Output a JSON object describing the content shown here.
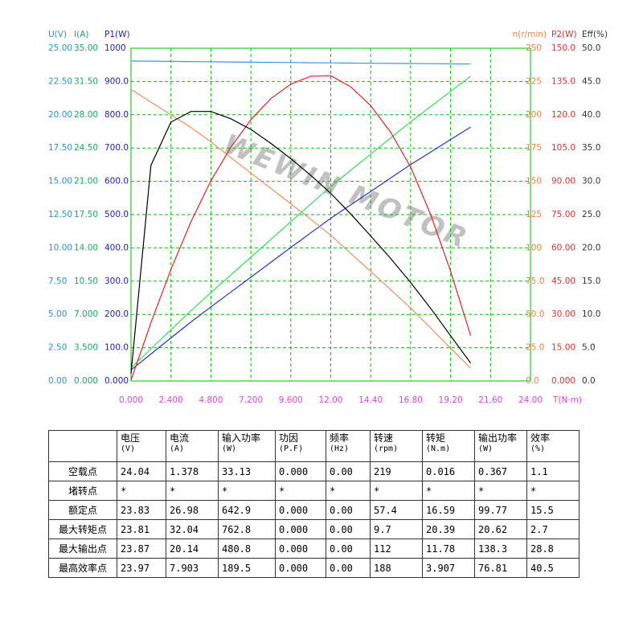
{
  "chart_data": {
    "type": "line",
    "watermark": "WEWIN MOTOR",
    "xlabel": "T(N·m)",
    "xlim": [
      0,
      24
    ],
    "xticks": [
      {
        "value": 0,
        "label": "0.000"
      },
      {
        "value": 2.4,
        "label": "2.400"
      },
      {
        "value": 4.8,
        "label": "4.800"
      },
      {
        "value": 7.2,
        "label": "7.200"
      },
      {
        "value": 9.6,
        "label": "9.600"
      },
      {
        "value": 12,
        "label": "12.00"
      },
      {
        "value": 14.4,
        "label": "14.40"
      },
      {
        "value": 16.8,
        "label": "16.80"
      },
      {
        "value": 19.2,
        "label": "19.20"
      },
      {
        "value": 21.6,
        "label": "21.60"
      },
      {
        "value": 24,
        "label": "24.00"
      }
    ],
    "grid": true,
    "x": [
      0,
      1.2,
      2.4,
      3.6,
      4.8,
      6,
      7.2,
      8.4,
      9.6,
      10.8,
      12,
      13.2,
      14.4,
      15.6,
      16.8,
      18,
      19.2,
      20.4
    ],
    "series": [
      {
        "name": "U(V)",
        "color": "#3a9ad9",
        "label_color": "#2d8fd5",
        "side": "left",
        "ylim": [
          0,
          25
        ],
        "yticks": [
          {
            "value": 0,
            "label": "0.00"
          },
          {
            "value": 2.5,
            "label": "2.50"
          },
          {
            "value": 5,
            "label": "5.00"
          },
          {
            "value": 7.5,
            "label": "7.50"
          },
          {
            "value": 10,
            "label": "10.00"
          },
          {
            "value": 12.5,
            "label": "12.50"
          },
          {
            "value": 15,
            "label": "15.00"
          },
          {
            "value": 17.5,
            "label": "17.50"
          },
          {
            "value": 20,
            "label": "20.00"
          },
          {
            "value": 22.5,
            "label": "22.50"
          },
          {
            "value": 25,
            "label": "25.00"
          }
        ],
        "values": [
          24.04,
          24.03,
          24.01,
          24.0,
          23.98,
          23.97,
          23.95,
          23.94,
          23.93,
          23.91,
          23.9,
          23.88,
          23.87,
          23.86,
          23.85,
          23.84,
          23.82,
          23.81
        ]
      },
      {
        "name": "I(A)",
        "color": "#33dd55",
        "label_color": "#1aa860",
        "side": "left",
        "ylim": [
          0,
          35
        ],
        "yticks": [
          {
            "value": 0,
            "label": "0.000"
          },
          {
            "value": 3.5,
            "label": "3.500"
          },
          {
            "value": 7,
            "label": "7.000"
          },
          {
            "value": 10.5,
            "label": "10.50"
          },
          {
            "value": 14,
            "label": "14.00"
          },
          {
            "value": 17.5,
            "label": "17.50"
          },
          {
            "value": 21,
            "label": "21.00"
          },
          {
            "value": 24.5,
            "label": "24.50"
          },
          {
            "value": 28,
            "label": "28.00"
          },
          {
            "value": 31.5,
            "label": "31.50"
          },
          {
            "value": 35,
            "label": "35.00"
          }
        ],
        "values": [
          1.38,
          3.38,
          5.39,
          7.39,
          9.29,
          11.16,
          13.02,
          14.89,
          16.76,
          18.62,
          20.45,
          22.16,
          23.86,
          25.57,
          27.26,
          28.86,
          30.46,
          32.05
        ]
      },
      {
        "name": "P1(W)",
        "color": "#2233cc",
        "label_color": "#2020c0",
        "side": "left",
        "ylim": [
          0,
          1000
        ],
        "yticks": [
          {
            "value": 0,
            "label": "0.000"
          },
          {
            "value": 100,
            "label": "100.0"
          },
          {
            "value": 200,
            "label": "200.0"
          },
          {
            "value": 300,
            "label": "300.0"
          },
          {
            "value": 400,
            "label": "400.0"
          },
          {
            "value": 500,
            "label": "500.0"
          },
          {
            "value": 600,
            "label": "600.0"
          },
          {
            "value": 700,
            "label": "700.0"
          },
          {
            "value": 800,
            "label": "800.0"
          },
          {
            "value": 900,
            "label": "900.0"
          },
          1000
        ],
        "values": [
          33.2,
          81.2,
          129.4,
          177.4,
          222.8,
          267.5,
          311.8,
          356.5,
          401.1,
          445.2,
          488.8,
          529.2,
          569.5,
          610.1,
          650.2,
          688.0,
          725.6,
          763.1
        ]
      },
      {
        "name": "n(r/min)",
        "color": "#f0905a",
        "label_color": "#f08040",
        "side": "right",
        "ylim": [
          0,
          250
        ],
        "yticks": [
          {
            "value": 0,
            "label": "0.0"
          },
          {
            "value": 25,
            "label": "25.0"
          },
          {
            "value": 50,
            "label": "50.0"
          },
          {
            "value": 75,
            "label": "75.0"
          },
          100,
          125,
          150,
          175,
          200,
          225,
          250
        ],
        "values": [
          219,
          209.5,
          200,
          190.4,
          179.7,
          167.8,
          156.2,
          144.7,
          133.1,
          121.5,
          109.5,
          95.9,
          82.3,
          68.6,
          54.8,
          39.8,
          24.6,
          9.6
        ]
      },
      {
        "name": "P2(W)",
        "color": "#e82020",
        "label_color": "#e03030",
        "side": "right",
        "ylim": [
          0,
          150
        ],
        "yticks": [
          {
            "value": 0,
            "label": "0.000"
          },
          {
            "value": 15,
            "label": "15.00"
          },
          {
            "value": 30,
            "label": "30.00"
          },
          {
            "value": 45,
            "label": "45.00"
          },
          {
            "value": 60,
            "label": "60.00"
          },
          {
            "value": 75,
            "label": "75.00"
          },
          {
            "value": 90,
            "label": "90.00"
          },
          {
            "value": 105,
            "label": "105.0"
          },
          {
            "value": 120,
            "label": "120.0"
          },
          {
            "value": 135,
            "label": "135.0"
          },
          {
            "value": 150,
            "label": "150.0"
          }
        ],
        "values": [
          0.37,
          26.3,
          50.3,
          71.8,
          90.3,
          105.4,
          117.8,
          127.3,
          133.8,
          137.4,
          137.6,
          132.6,
          124.1,
          112.1,
          96.4,
          75.0,
          49.5,
          20.5
        ]
      },
      {
        "name": "Eff(%)",
        "color": "#000000",
        "label_color": "#333333",
        "side": "right",
        "ylim": [
          0,
          50
        ],
        "yticks": [
          {
            "value": 0,
            "label": "0.0"
          },
          {
            "value": 5,
            "label": "5.0"
          },
          {
            "value": 10,
            "label": "10.0"
          },
          {
            "value": 15,
            "label": "15.0"
          },
          {
            "value": 20,
            "label": "20.0"
          },
          {
            "value": 25,
            "label": "25.0"
          },
          {
            "value": 30,
            "label": "30.0"
          },
          {
            "value": 35,
            "label": "35.0"
          },
          {
            "value": 40,
            "label": "40.0"
          },
          {
            "value": 45,
            "label": "45.0"
          },
          {
            "value": 50,
            "label": "50.0"
          }
        ],
        "values": [
          1.1,
          32.4,
          38.9,
          40.5,
          40.5,
          39.4,
          37.8,
          35.7,
          33.4,
          30.9,
          28.2,
          25.1,
          21.8,
          18.4,
          14.8,
          10.9,
          6.8,
          2.7
        ]
      }
    ]
  },
  "table": {
    "columns": [
      {
        "name": "电压",
        "unit": "(V)"
      },
      {
        "name": "电流",
        "unit": "(A)"
      },
      {
        "name": "输入功率",
        "unit": "(W)"
      },
      {
        "name": "功因",
        "unit": "(P.F)"
      },
      {
        "name": "频率",
        "unit": "(Hz)"
      },
      {
        "name": "转速",
        "unit": "(rpm)"
      },
      {
        "name": "转矩",
        "unit": "(N.m)"
      },
      {
        "name": "输出功率",
        "unit": "(W)"
      },
      {
        "name": "效率",
        "unit": "(%)"
      }
    ],
    "rows": [
      {
        "label": "空载点",
        "values": [
          "24.04",
          "1.378",
          "33.13",
          "0.000",
          "0.00",
          "219",
          "0.016",
          "0.367",
          "1.1"
        ]
      },
      {
        "label": "堵转点",
        "values": [
          "*",
          "*",
          "*",
          "*",
          "*",
          "*",
          "*",
          "*",
          "*"
        ]
      },
      {
        "label": "额定点",
        "values": [
          "23.83",
          "26.98",
          "642.9",
          "0.000",
          "0.00",
          "57.4",
          "16.59",
          "99.77",
          "15.5"
        ]
      },
      {
        "label": "最大转矩点",
        "values": [
          "23.81",
          "32.04",
          "762.8",
          "0.000",
          "0.00",
          "9.7",
          "20.39",
          "20.62",
          "2.7"
        ]
      },
      {
        "label": "最大输出点",
        "values": [
          "23.87",
          "20.14",
          "480.8",
          "0.000",
          "0.00",
          "112",
          "11.78",
          "138.3",
          "28.8"
        ]
      },
      {
        "label": "最高效率点",
        "values": [
          "23.97",
          "7.903",
          "189.5",
          "0.000",
          "0.00",
          "188",
          "3.907",
          "76.81",
          "40.5"
        ]
      }
    ]
  }
}
